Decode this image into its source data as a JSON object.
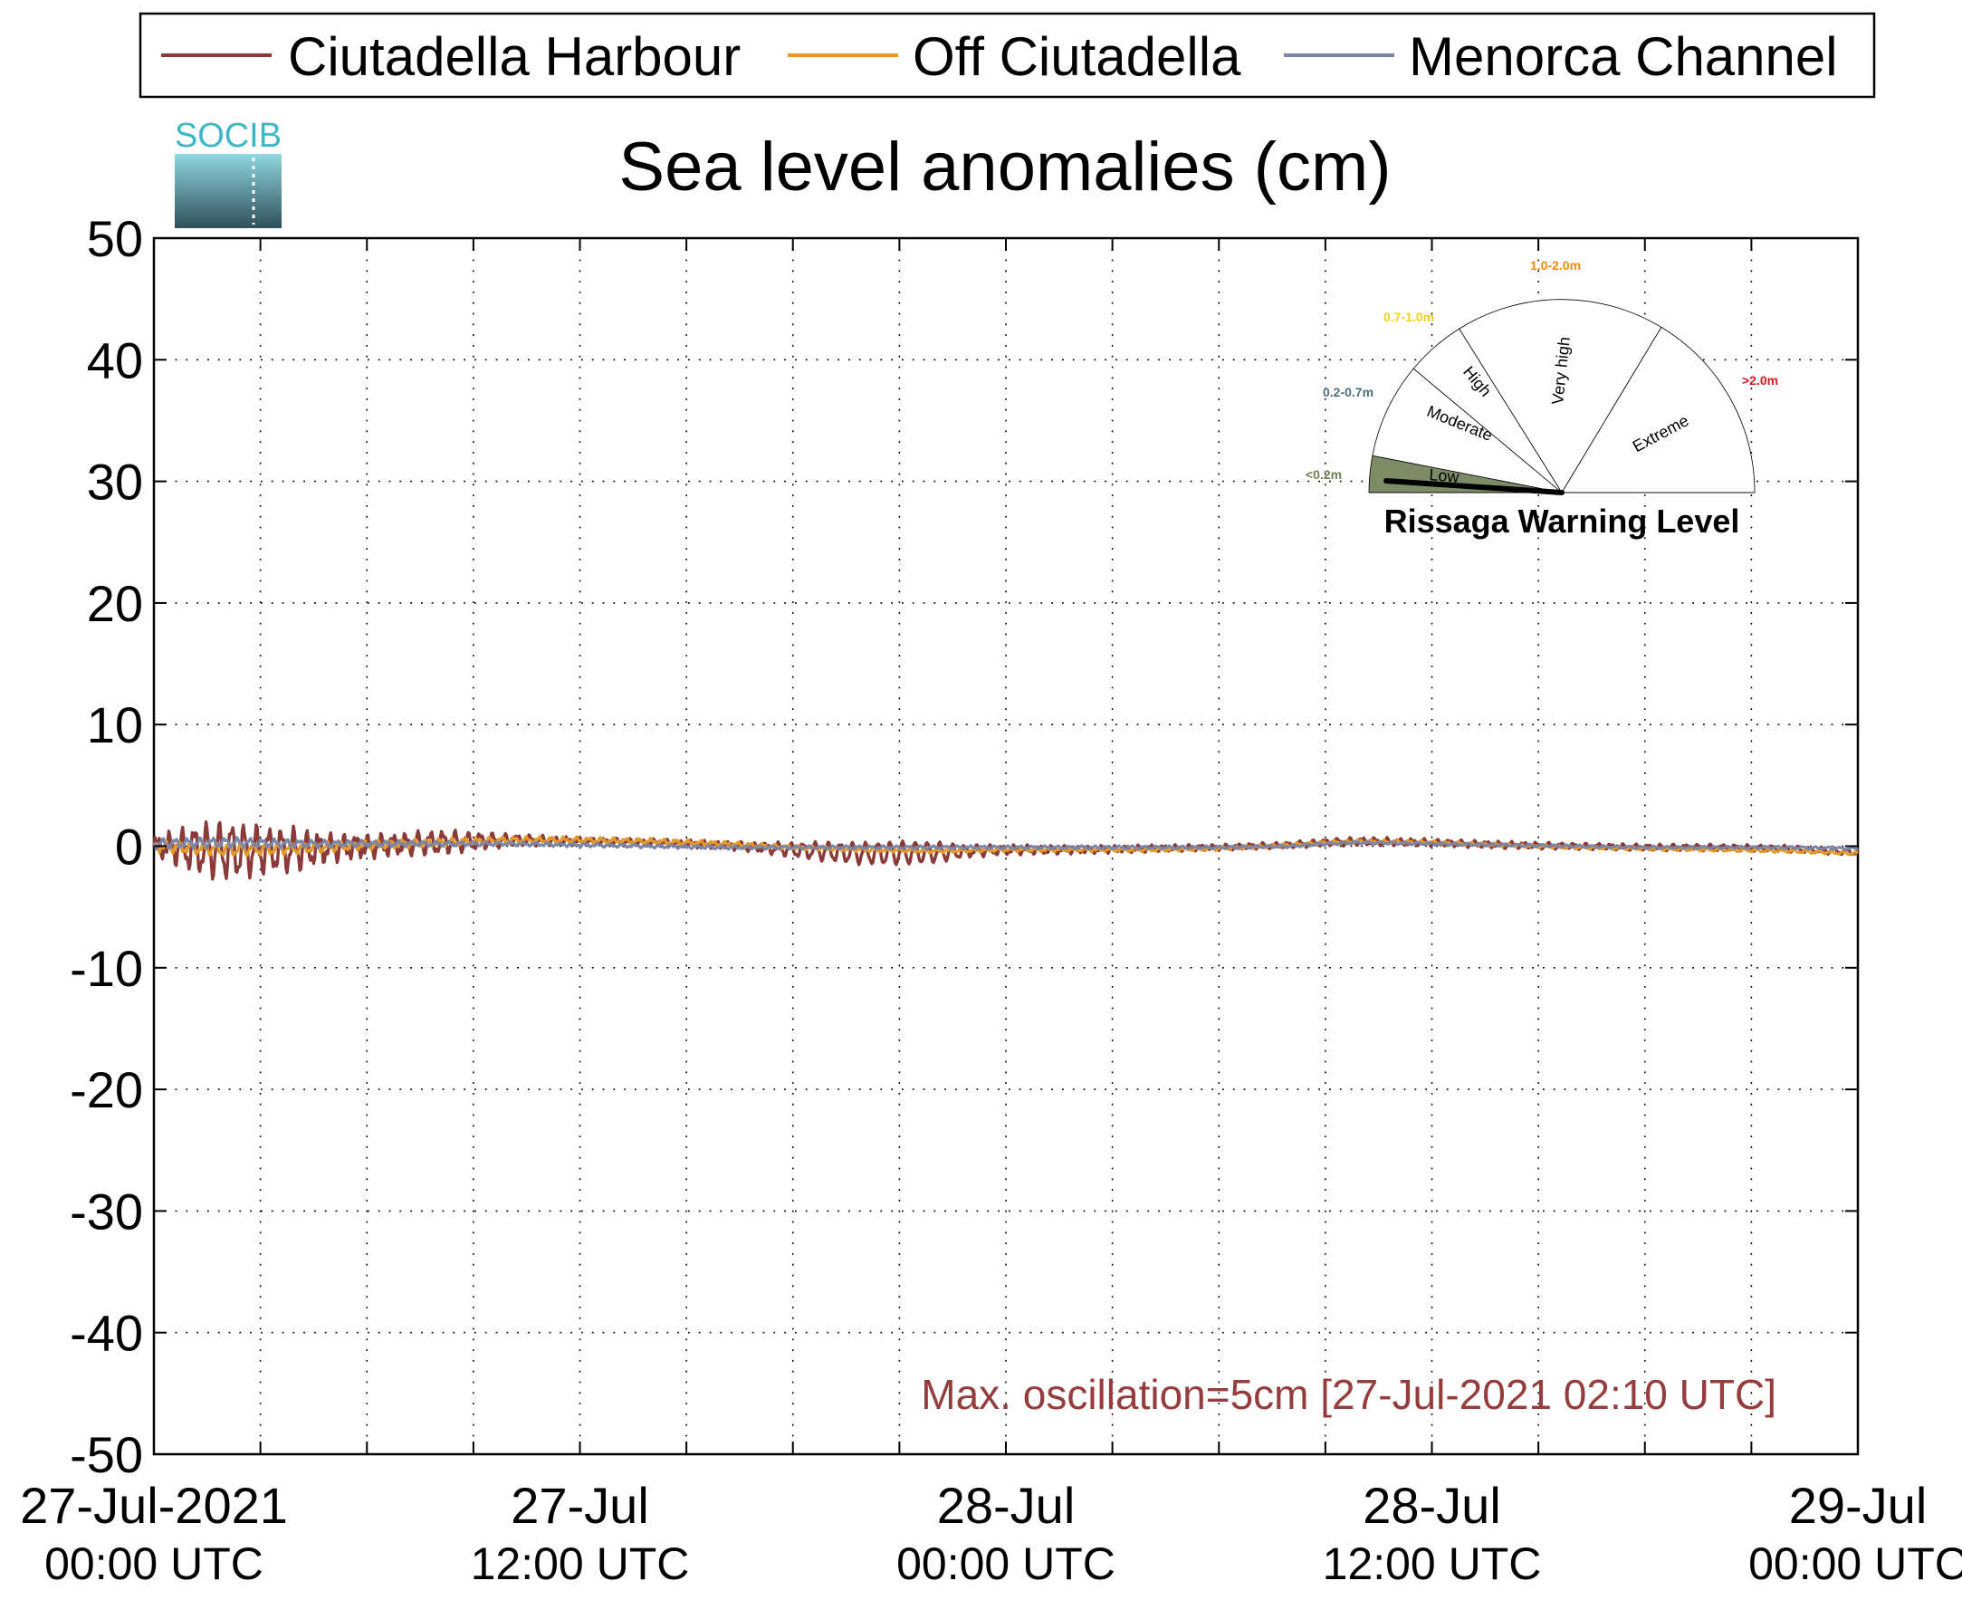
{
  "colors": {
    "ciutadella_harbour": "#8B3A3A",
    "off_ciutadella": "#E39A2A",
    "menorca_channel": "#7A86A8",
    "gauge_low_fill": "#7D8C66",
    "annotation": "#963C3C",
    "logo_text": "#3DB8C9",
    "logo_top": "#8FD7E0",
    "logo_bottom": "#2F4F5A"
  },
  "logo": {
    "text": "SOCIB",
    "icon": "socib-logo"
  },
  "chart_data": {
    "type": "line",
    "title": "Sea level anomalies (cm)",
    "xlabel": "",
    "ylabel": "",
    "ylim": [
      -50,
      50
    ],
    "yticks": [
      50,
      40,
      30,
      20,
      10,
      0,
      -10,
      -20,
      -30,
      -40,
      -50
    ],
    "xlim_hours": [
      0,
      48
    ],
    "x_unit": "hours since 27-Jul-2021 00:00 UTC",
    "xticks": [
      {
        "hours": 0,
        "line1": "27-Jul-2021",
        "line2": "00:00 UTC"
      },
      {
        "hours": 12,
        "line1": "27-Jul",
        "line2": "12:00 UTC"
      },
      {
        "hours": 24,
        "line1": "28-Jul",
        "line2": "00:00 UTC"
      },
      {
        "hours": 36,
        "line1": "28-Jul",
        "line2": "12:00 UTC"
      },
      {
        "hours": 48,
        "line1": "29-Jul",
        "line2": "00:00 UTC"
      }
    ],
    "minor_xticks_hours": [
      3,
      6,
      9,
      15,
      18,
      21,
      27,
      30,
      33,
      39,
      42,
      45
    ],
    "grid": true,
    "legend_position": "top",
    "series": [
      {
        "name": "Ciutadella Harbour",
        "color_key": "ciutadella_harbour",
        "envelope": [
          [
            0,
            0.3,
            1.0
          ],
          [
            1,
            1.5,
            2.2
          ],
          [
            1.5,
            1.8,
            2.6
          ],
          [
            2.17,
            2.0,
            2.7
          ],
          [
            3,
            1.6,
            2.3
          ],
          [
            4,
            1.4,
            2.1
          ],
          [
            5,
            0.8,
            1.4
          ],
          [
            6,
            0.6,
            1.2
          ],
          [
            7,
            0.7,
            1.1
          ],
          [
            8,
            0.8,
            1.2
          ],
          [
            9,
            0.6,
            0.9
          ],
          [
            10,
            0.4,
            0.6
          ],
          [
            12,
            0.2,
            0.4
          ],
          [
            14,
            0.2,
            0.35
          ],
          [
            16,
            0.15,
            0.4
          ],
          [
            17,
            0.3,
            0.5
          ],
          [
            18,
            0.5,
            0.7
          ],
          [
            19,
            0.7,
            0.9
          ],
          [
            20,
            0.8,
            1.0
          ],
          [
            21,
            0.9,
            1.0
          ],
          [
            22,
            0.8,
            0.9
          ],
          [
            23,
            0.4,
            0.6
          ],
          [
            24,
            0.3,
            0.5
          ],
          [
            26,
            0.2,
            0.4
          ],
          [
            28,
            0.2,
            0.35
          ],
          [
            30,
            0.15,
            0.3
          ],
          [
            32,
            0.2,
            0.3
          ],
          [
            34,
            0.25,
            0.4
          ],
          [
            36,
            0.2,
            0.35
          ],
          [
            38,
            0.2,
            0.35
          ],
          [
            40,
            0.2,
            0.3
          ],
          [
            44,
            0.2,
            0.3
          ],
          [
            48,
            0.2,
            0.3
          ]
        ],
        "values": [
          [
            0,
            0.0
          ],
          [
            2,
            -0.4
          ],
          [
            4,
            -0.3
          ],
          [
            6,
            0.0
          ],
          [
            8,
            0.3
          ],
          [
            10,
            0.5
          ],
          [
            12,
            0.4
          ],
          [
            14,
            0.3
          ],
          [
            16,
            0.1
          ],
          [
            18,
            -0.3
          ],
          [
            20,
            -0.6
          ],
          [
            22,
            -0.5
          ],
          [
            24,
            -0.3
          ],
          [
            26,
            -0.3
          ],
          [
            28,
            -0.2
          ],
          [
            30,
            -0.1
          ],
          [
            32,
            0.1
          ],
          [
            33,
            0.3
          ],
          [
            34,
            0.4
          ],
          [
            36,
            0.3
          ],
          [
            38,
            0.1
          ],
          [
            40,
            0.0
          ],
          [
            42,
            -0.1
          ],
          [
            44,
            -0.1
          ],
          [
            46,
            -0.2
          ],
          [
            48,
            -0.5
          ]
        ]
      },
      {
        "name": "Off Ciutadella",
        "color_key": "off_ciutadella",
        "envelope": [
          [
            0,
            0.3,
            0.6
          ],
          [
            2,
            0.4,
            0.6
          ],
          [
            5,
            0.3,
            0.5
          ],
          [
            10,
            0.2,
            0.35
          ],
          [
            20,
            0.1,
            0.2
          ],
          [
            48,
            0.1,
            0.15
          ]
        ],
        "values": [
          [
            0,
            0.0
          ],
          [
            2,
            -0.3
          ],
          [
            4,
            -0.2
          ],
          [
            6,
            0.1
          ],
          [
            8,
            0.3
          ],
          [
            10,
            0.5
          ],
          [
            12,
            0.5
          ],
          [
            14,
            0.4
          ],
          [
            16,
            0.2
          ],
          [
            18,
            -0.1
          ],
          [
            20,
            -0.3
          ],
          [
            22,
            -0.4
          ],
          [
            24,
            -0.3
          ],
          [
            26,
            -0.3
          ],
          [
            28,
            -0.3
          ],
          [
            30,
            -0.2
          ],
          [
            32,
            0.1
          ],
          [
            33,
            0.3
          ],
          [
            34,
            0.4
          ],
          [
            36,
            0.3
          ],
          [
            38,
            0.1
          ],
          [
            40,
            -0.1
          ],
          [
            42,
            -0.2
          ],
          [
            44,
            -0.3
          ],
          [
            46,
            -0.4
          ],
          [
            48,
            -0.6
          ]
        ]
      },
      {
        "name": "Menorca Channel",
        "color_key": "menorca_channel",
        "envelope": [
          [
            0,
            0.3,
            0.5
          ],
          [
            2,
            0.3,
            0.5
          ],
          [
            5,
            0.2,
            0.35
          ],
          [
            10,
            0.1,
            0.2
          ],
          [
            48,
            0.08,
            0.12
          ]
        ],
        "values": [
          [
            0,
            0.2
          ],
          [
            2,
            0.3
          ],
          [
            4,
            0.2
          ],
          [
            6,
            0.2
          ],
          [
            8,
            0.2
          ],
          [
            10,
            0.2
          ],
          [
            12,
            0.1
          ],
          [
            14,
            0.0
          ],
          [
            16,
            -0.1
          ],
          [
            18,
            -0.1
          ],
          [
            20,
            -0.1
          ],
          [
            22,
            -0.1
          ],
          [
            24,
            -0.1
          ],
          [
            26,
            -0.1
          ],
          [
            28,
            -0.1
          ],
          [
            30,
            -0.1
          ],
          [
            32,
            0.0
          ],
          [
            33,
            0.2
          ],
          [
            34,
            0.3
          ],
          [
            36,
            0.2
          ],
          [
            38,
            0.1
          ],
          [
            40,
            0.0
          ],
          [
            42,
            -0.1
          ],
          [
            44,
            -0.1
          ],
          [
            46,
            -0.1
          ],
          [
            48,
            -0.2
          ]
        ]
      }
    ],
    "annotations": [
      {
        "text": "Max. oscillation=5cm [27-Jul-2021 02:10 UTC]",
        "color_key": "annotation"
      }
    ]
  },
  "gauge": {
    "title": "Rissaga Warning Level",
    "current_level": "Low",
    "needle_value_m": 0.05,
    "segments": [
      {
        "label": "Low",
        "range": "<0.2m",
        "range_color": "#6E7F52",
        "highlight": true
      },
      {
        "label": "Moderate",
        "range": "0.2-0.7m",
        "range_color": "#4E6E78",
        "highlight": false
      },
      {
        "label": "High",
        "range": "0.7-1.0m",
        "range_color": "#F2D21B",
        "highlight": false
      },
      {
        "label": "Very high",
        "range": "1.0-2.0m",
        "range_color": "#F08A12",
        "highlight": false
      },
      {
        "label": "Extreme",
        "range": ">2.0m",
        "range_color": "#E0141B",
        "highlight": false
      }
    ]
  }
}
